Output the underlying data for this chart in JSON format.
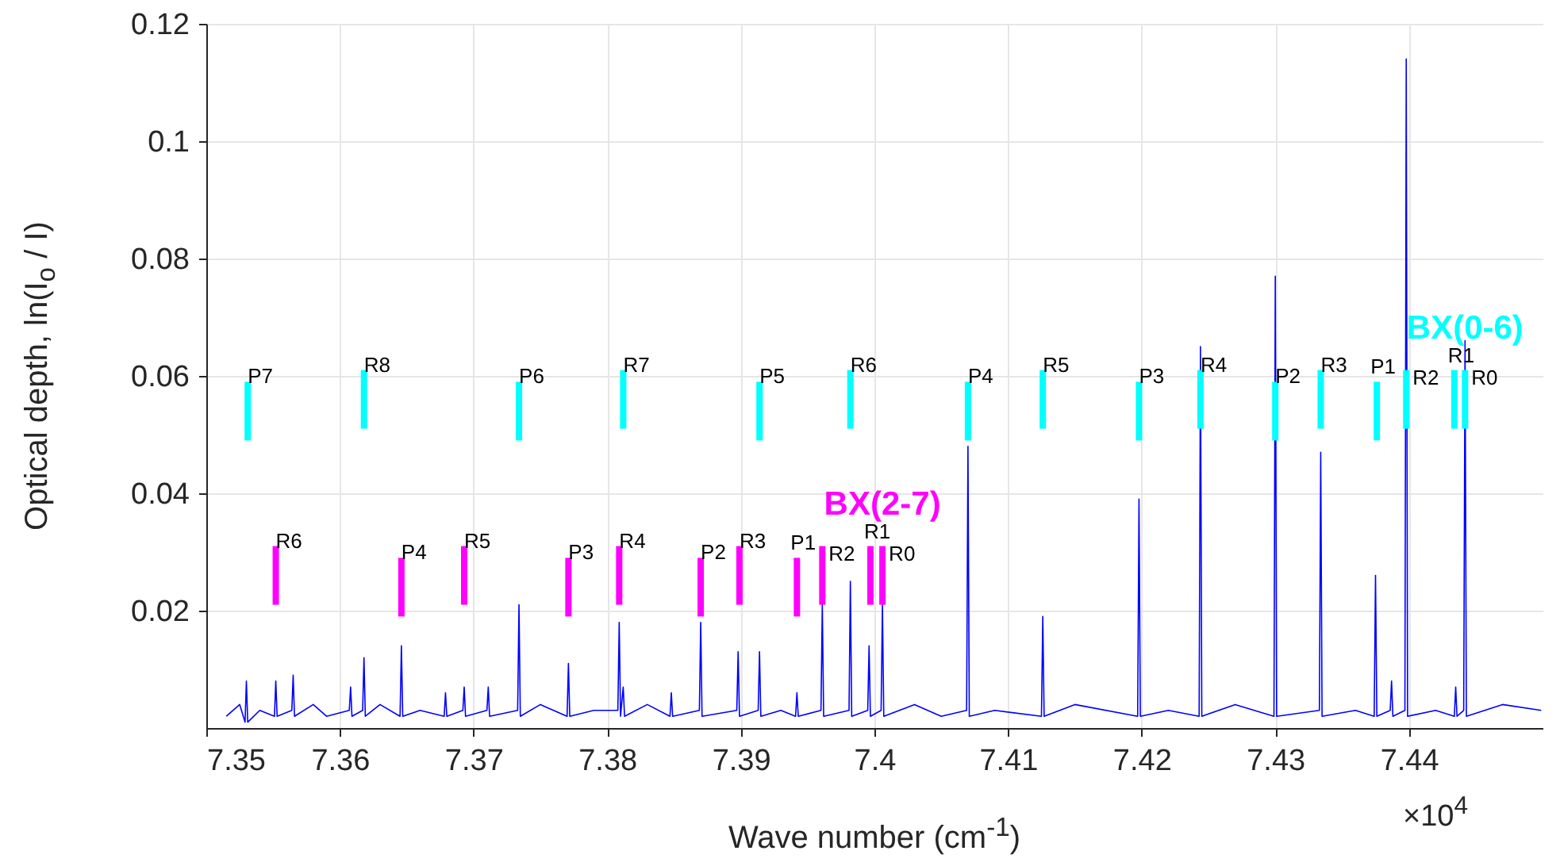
{
  "chart_data": {
    "type": "line",
    "xlabel": "Wave number (cm$^{-1}$)",
    "ylabel": "Optical depth, ln(I$_{o}$ / I)",
    "annotations": [
      "×10$^{4}$"
    ],
    "xlim": [
      7.35,
      7.45
    ],
    "xticks": [
      7.35,
      7.36,
      7.37,
      7.38,
      7.39,
      7.4,
      7.41,
      7.42,
      7.43,
      7.44
    ],
    "ylim": [
      0,
      0.12
    ],
    "yticks": [
      0.02,
      0.04,
      0.06,
      0.08,
      0.1,
      0.12
    ],
    "grid": true,
    "series": [
      {
        "color": "#0000ff",
        "x": [
          7.3515,
          7.3525,
          7.3529,
          7.353,
          7.3531,
          7.354,
          7.3551,
          7.3552,
          7.3553,
          7.3564,
          7.3565,
          7.3566,
          7.358,
          7.359,
          7.3607,
          7.3608,
          7.3609,
          7.3617,
          7.3618,
          7.3619,
          7.363,
          7.3645,
          7.3646,
          7.3647,
          7.366,
          7.3678,
          7.3679,
          7.368,
          7.3692,
          7.3693,
          7.3694,
          7.371,
          7.3711,
          7.3712,
          7.3733,
          7.3734,
          7.3735,
          7.375,
          7.377,
          7.3771,
          7.3772,
          7.379,
          7.3808,
          7.3809,
          7.381,
          7.3812,
          7.3813,
          7.383,
          7.3847,
          7.3848,
          7.3849,
          7.3869,
          7.387,
          7.3871,
          7.3897,
          7.3898,
          7.3899,
          7.3913,
          7.3914,
          7.3915,
          7.393,
          7.3941,
          7.3942,
          7.3943,
          7.396,
          7.3961,
          7.3962,
          7.3981,
          7.3982,
          7.3983,
          7.3995,
          7.3996,
          7.3997,
          7.4005,
          7.4006,
          7.4007,
          7.403,
          7.405,
          7.4069,
          7.407,
          7.4071,
          7.409,
          7.4125,
          7.4126,
          7.4127,
          7.415,
          7.4197,
          7.4198,
          7.4199,
          7.422,
          7.4243,
          7.4244,
          7.4245,
          7.427,
          7.4299,
          7.43,
          7.4301,
          7.4333,
          7.4334,
          7.4335,
          7.436,
          7.4374,
          7.4375,
          7.4376,
          7.4386,
          7.4387,
          7.4388,
          7.4397,
          7.4398,
          7.4399,
          7.442,
          7.4434,
          7.4435,
          7.4436,
          7.4441,
          7.4442,
          7.4443,
          7.447,
          7.4499
        ],
        "values": [
          0.002,
          0.004,
          0.001,
          0.008,
          0.001,
          0.003,
          0.002,
          0.008,
          0.002,
          0.003,
          0.009,
          0.002,
          0.004,
          0.002,
          0.003,
          0.007,
          0.002,
          0.003,
          0.012,
          0.002,
          0.004,
          0.002,
          0.014,
          0.002,
          0.003,
          0.002,
          0.006,
          0.002,
          0.003,
          0.007,
          0.002,
          0.003,
          0.007,
          0.002,
          0.003,
          0.021,
          0.002,
          0.004,
          0.002,
          0.011,
          0.002,
          0.003,
          0.003,
          0.018,
          0.002,
          0.007,
          0.002,
          0.004,
          0.002,
          0.006,
          0.002,
          0.003,
          0.018,
          0.002,
          0.003,
          0.013,
          0.002,
          0.003,
          0.013,
          0.002,
          0.003,
          0.002,
          0.006,
          0.002,
          0.003,
          0.021,
          0.002,
          0.003,
          0.025,
          0.002,
          0.003,
          0.014,
          0.002,
          0.003,
          0.021,
          0.002,
          0.004,
          0.002,
          0.003,
          0.048,
          0.002,
          0.003,
          0.002,
          0.019,
          0.002,
          0.004,
          0.002,
          0.039,
          0.002,
          0.003,
          0.002,
          0.065,
          0.002,
          0.004,
          0.002,
          0.077,
          0.002,
          0.003,
          0.047,
          0.002,
          0.003,
          0.002,
          0.026,
          0.002,
          0.003,
          0.008,
          0.002,
          0.003,
          0.114,
          0.002,
          0.003,
          0.002,
          0.007,
          0.002,
          0.003,
          0.066,
          0.002,
          0.004,
          0.003
        ]
      },
      {
        "type": "bar",
        "name": "BX(0-6)",
        "color": "#00ffff",
        "x": [
          7.3531,
          7.3618,
          7.3734,
          7.3812,
          7.3914,
          7.3982,
          7.407,
          7.4126,
          7.4198,
          7.4244,
          7.43,
          7.4334,
          7.4376,
          7.4398,
          7.4434,
          7.4442
        ],
        "base": [
          0.049,
          0.051,
          0.049,
          0.051,
          0.049,
          0.051,
          0.049,
          0.051,
          0.049,
          0.051,
          0.049,
          0.051,
          0.049,
          0.051,
          0.051,
          0.051
        ],
        "values": [
          0.01,
          0.01,
          0.01,
          0.01,
          0.01,
          0.01,
          0.01,
          0.01,
          0.01,
          0.01,
          0.01,
          0.01,
          0.01,
          0.01,
          0.01,
          0.01
        ],
        "value_labels": [
          "P7",
          "R8",
          "P6",
          "R7",
          "P5",
          "R6",
          "P4",
          "R5",
          "P3",
          "R4",
          "P2",
          "R3",
          "P1",
          "R2",
          "R1",
          "R0"
        ]
      },
      {
        "type": "bar",
        "name": "BX(2-7)",
        "color": "#ff00ff",
        "x": [
          7.3552,
          7.3646,
          7.3693,
          7.3771,
          7.3809,
          7.387,
          7.3899,
          7.3942,
          7.3961,
          7.3997,
          7.4006
        ],
        "base": [
          0.021,
          0.019,
          0.021,
          0.019,
          0.021,
          0.019,
          0.021,
          0.019,
          0.021,
          0.021,
          0.021
        ],
        "values": [
          0.01,
          0.01,
          0.01,
          0.01,
          0.01,
          0.01,
          0.01,
          0.01,
          0.01,
          0.01,
          0.01
        ],
        "value_labels": [
          "R6",
          "P4",
          "R5",
          "P3",
          "R4",
          "P2",
          "R3",
          "P1",
          "R2",
          "R1",
          "R0"
        ]
      }
    ]
  }
}
